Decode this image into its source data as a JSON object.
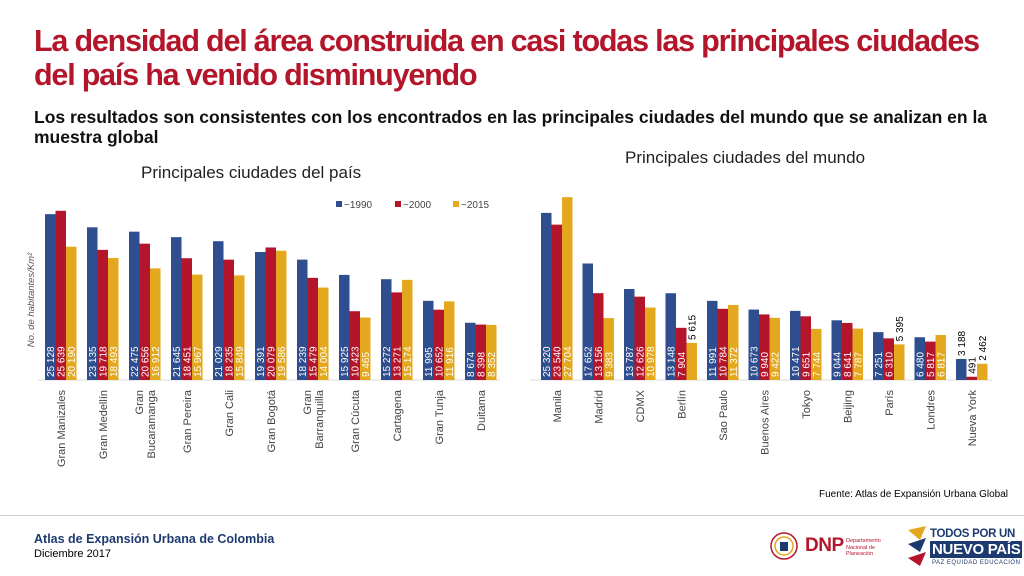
{
  "header": {
    "title": "La densidad del área construida en casi todas las principales ciudades del país ha venido disminuyendo",
    "subtitle": "Los resultados son consistentes con los encontrados en las principales ciudades del mundo que se analizan en la muestra global"
  },
  "colors": {
    "s1990": "#2e4e8f",
    "s2000": "#b5152b",
    "s2015": "#e3a81e",
    "title": "#b3162b",
    "footer_blue": "#1d3a70"
  },
  "chart_data": [
    {
      "type": "bar",
      "title": "Principales ciudades del país",
      "ylabel": "No. de habitantes/Km²",
      "ylim": [
        0,
        30000
      ],
      "legend": [
        "~1990",
        "~2000",
        "~2015"
      ],
      "legend_position": "top",
      "categories": [
        "Gran Manizales",
        "Gran Medellín",
        "Gran Bucaramanga",
        "Gran Pereira",
        "Gran Cali",
        "Gran Bogotá",
        "Gran Barranquilla",
        "Gran Cúcuta",
        "Cartagena",
        "Gran Tunja",
        "Duitama"
      ],
      "series": [
        {
          "name": "~1990",
          "values": [
            25128,
            23135,
            22475,
            21645,
            21029,
            19391,
            18239,
            15925,
            15272,
            11995,
            8674
          ],
          "labels": [
            "25 128",
            "23 135",
            "22 475",
            "21 645",
            "21 029",
            "19 391",
            "18 239",
            "15 925",
            "15 272",
            "11 995",
            "8 674"
          ]
        },
        {
          "name": "~2000",
          "values": [
            25639,
            19718,
            20656,
            18451,
            18235,
            20079,
            15479,
            10423,
            13271,
            10652,
            8398
          ],
          "labels": [
            "25 639",
            "19 718",
            "20 656",
            "18 451",
            "18 235",
            "20 079",
            "15 479",
            "10 423",
            "13 271",
            "10 652",
            "8 398"
          ]
        },
        {
          "name": "~2015",
          "values": [
            20190,
            18493,
            16912,
            15967,
            15849,
            19586,
            14004,
            9465,
            15174,
            11916,
            8352
          ],
          "labels": [
            "20 190",
            "18 493",
            "16 912",
            "15 967",
            "15 849",
            "19 586",
            "14 004",
            "9 465",
            "15 174",
            "11 916",
            "8 352"
          ]
        }
      ]
    },
    {
      "type": "bar",
      "title": "Principales ciudades del mundo",
      "ylim": [
        0,
        30000
      ],
      "categories": [
        "Manila",
        "Madrid",
        "CDMX",
        "Berlín",
        "Sao Paulo",
        "Buenos Aires",
        "Tokyo",
        "Beijing",
        "París",
        "Londres",
        "Nueva York"
      ],
      "series": [
        {
          "name": "~1990",
          "values": [
            25320,
            17652,
            13787,
            13148,
            11991,
            10673,
            10471,
            9044,
            7251,
            6480,
            3188
          ],
          "labels": [
            "25 320",
            "17 652",
            "13 787",
            "13 148",
            "11 991",
            "10 673",
            "10 471",
            "9 044",
            "7 251",
            "6 480",
            "3 188"
          ]
        },
        {
          "name": "~2000",
          "values": [
            23540,
            13156,
            12626,
            7904,
            10784,
            9940,
            9651,
            8641,
            6310,
            5817,
            491
          ],
          "labels": [
            "23 540",
            "13 156",
            "12 626",
            "7 904",
            "10 784",
            "9 940",
            "9 651",
            "8 641",
            "6 310",
            "5 817",
            "491"
          ]
        },
        {
          "name": "~2015",
          "values": [
            27704,
            9383,
            10978,
            5615,
            11372,
            9422,
            7744,
            7787,
            5395,
            6817,
            2462
          ],
          "labels": [
            "27 704",
            "9 383",
            "10 978",
            "5 615",
            "11 372",
            "9 422",
            "7 744",
            "7 787",
            "5 395",
            "6 817",
            "2 462"
          ]
        }
      ]
    }
  ],
  "source": "Fuente: Atlas de Expansión Urbana Global",
  "footer": {
    "title": "Atlas de Expansión Urbana de Colombia",
    "date": "Diciembre 2017",
    "logo_dnp": "DNP",
    "logo_dnp_sub": "Departamento Nacional de Planeación",
    "logo_tpu_line1": "TODOS POR UN",
    "logo_tpu_line2": "NUEVO PAÍS",
    "logo_tpu_line3": "PAZ   EQUIDAD   EDUCACIÓN"
  }
}
